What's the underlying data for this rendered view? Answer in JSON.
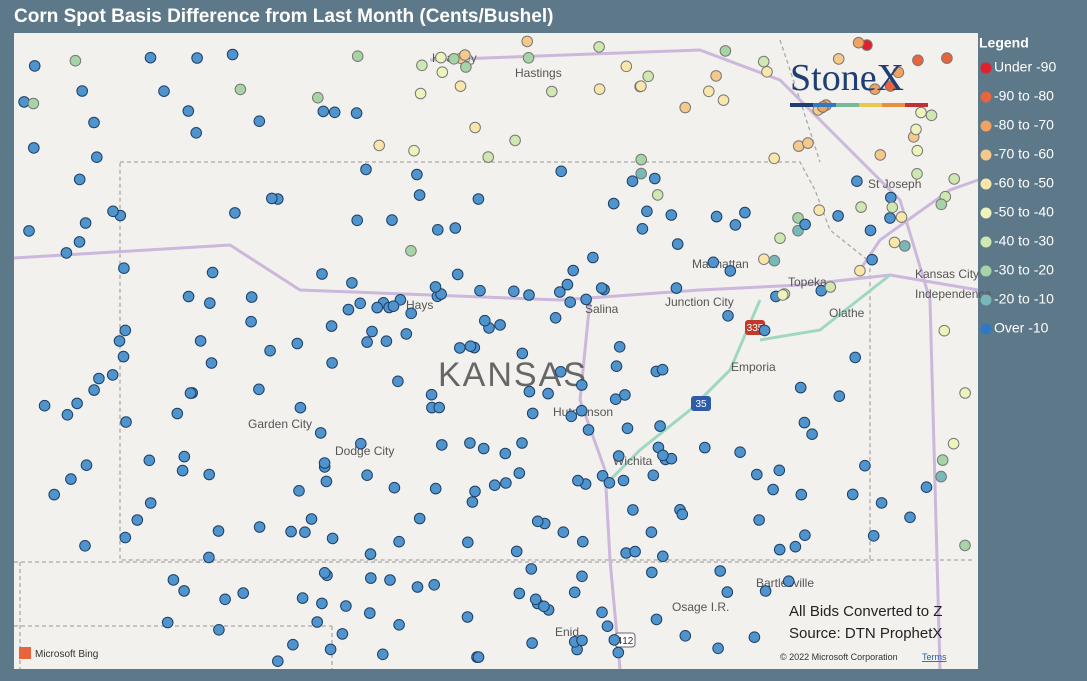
{
  "title": "Corn Spot Basis Difference from Last Month (Cents/Bushel)",
  "legend": {
    "title": "Legend",
    "items": [
      {
        "label": "Under -90",
        "color": "#e0202a"
      },
      {
        "label": "-90 to -80",
        "color": "#e8643c"
      },
      {
        "label": "-80 to -70",
        "color": "#f0a262"
      },
      {
        "label": "-70 to -60",
        "color": "#f5c98c"
      },
      {
        "label": "-60 to -50",
        "color": "#f8e6aa"
      },
      {
        "label": "-50 to -40",
        "color": "#eef3bc"
      },
      {
        "label": "-40 to -30",
        "color": "#cfe7b0"
      },
      {
        "label": "-30 to -20",
        "color": "#a6d4a6"
      },
      {
        "label": "-20 to -10",
        "color": "#78b8b8"
      },
      {
        "label": "Over -10",
        "color": "#2f78c2"
      }
    ]
  },
  "map_labels": [
    "Kearney",
    "Hastings",
    "St Joseph",
    "Manhattan",
    "Topeka",
    "Kansas City",
    "Independence",
    "Junction City",
    "Hays",
    "Salina",
    "KANSAS",
    "Emporia",
    "Olathe",
    "Garden City",
    "Dodge City",
    "Hutchinson",
    "Wichita",
    "Bartlesville",
    "Osage I.R.",
    "Enid"
  ],
  "shields": [
    "335",
    "35",
    "412"
  ],
  "logo": "StoneX",
  "notes": [
    "All Bids Converted to Z",
    "Source: DTN ProphetX"
  ],
  "attribution": {
    "provider": "Microsoft Bing",
    "copyright": "© 2022 Microsoft Corporation",
    "terms": "Terms"
  }
}
